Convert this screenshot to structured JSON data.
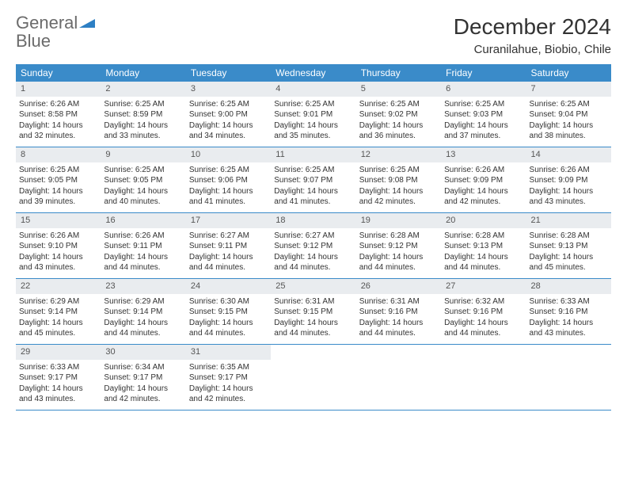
{
  "brand": {
    "word1": "General",
    "word2": "Blue"
  },
  "title": "December 2024",
  "location": "Curanilahue, Biobio, Chile",
  "colors": {
    "header_bg": "#3a8bc9",
    "header_text": "#ffffff",
    "daynum_bg": "#e9ecef",
    "border": "#3a8bc9",
    "brand_gray": "#6b6b6b",
    "brand_blue": "#2d7fc4"
  },
  "font": {
    "title_size": 28,
    "location_size": 15,
    "weekday_size": 12,
    "body_size": 10
  },
  "weekdays": [
    "Sunday",
    "Monday",
    "Tuesday",
    "Wednesday",
    "Thursday",
    "Friday",
    "Saturday"
  ],
  "weeks": [
    [
      {
        "n": "1",
        "sr": "Sunrise: 6:26 AM",
        "ss": "Sunset: 8:58 PM",
        "dl": "Daylight: 14 hours and 32 minutes."
      },
      {
        "n": "2",
        "sr": "Sunrise: 6:25 AM",
        "ss": "Sunset: 8:59 PM",
        "dl": "Daylight: 14 hours and 33 minutes."
      },
      {
        "n": "3",
        "sr": "Sunrise: 6:25 AM",
        "ss": "Sunset: 9:00 PM",
        "dl": "Daylight: 14 hours and 34 minutes."
      },
      {
        "n": "4",
        "sr": "Sunrise: 6:25 AM",
        "ss": "Sunset: 9:01 PM",
        "dl": "Daylight: 14 hours and 35 minutes."
      },
      {
        "n": "5",
        "sr": "Sunrise: 6:25 AM",
        "ss": "Sunset: 9:02 PM",
        "dl": "Daylight: 14 hours and 36 minutes."
      },
      {
        "n": "6",
        "sr": "Sunrise: 6:25 AM",
        "ss": "Sunset: 9:03 PM",
        "dl": "Daylight: 14 hours and 37 minutes."
      },
      {
        "n": "7",
        "sr": "Sunrise: 6:25 AM",
        "ss": "Sunset: 9:04 PM",
        "dl": "Daylight: 14 hours and 38 minutes."
      }
    ],
    [
      {
        "n": "8",
        "sr": "Sunrise: 6:25 AM",
        "ss": "Sunset: 9:05 PM",
        "dl": "Daylight: 14 hours and 39 minutes."
      },
      {
        "n": "9",
        "sr": "Sunrise: 6:25 AM",
        "ss": "Sunset: 9:05 PM",
        "dl": "Daylight: 14 hours and 40 minutes."
      },
      {
        "n": "10",
        "sr": "Sunrise: 6:25 AM",
        "ss": "Sunset: 9:06 PM",
        "dl": "Daylight: 14 hours and 41 minutes."
      },
      {
        "n": "11",
        "sr": "Sunrise: 6:25 AM",
        "ss": "Sunset: 9:07 PM",
        "dl": "Daylight: 14 hours and 41 minutes."
      },
      {
        "n": "12",
        "sr": "Sunrise: 6:25 AM",
        "ss": "Sunset: 9:08 PM",
        "dl": "Daylight: 14 hours and 42 minutes."
      },
      {
        "n": "13",
        "sr": "Sunrise: 6:26 AM",
        "ss": "Sunset: 9:09 PM",
        "dl": "Daylight: 14 hours and 42 minutes."
      },
      {
        "n": "14",
        "sr": "Sunrise: 6:26 AM",
        "ss": "Sunset: 9:09 PM",
        "dl": "Daylight: 14 hours and 43 minutes."
      }
    ],
    [
      {
        "n": "15",
        "sr": "Sunrise: 6:26 AM",
        "ss": "Sunset: 9:10 PM",
        "dl": "Daylight: 14 hours and 43 minutes."
      },
      {
        "n": "16",
        "sr": "Sunrise: 6:26 AM",
        "ss": "Sunset: 9:11 PM",
        "dl": "Daylight: 14 hours and 44 minutes."
      },
      {
        "n": "17",
        "sr": "Sunrise: 6:27 AM",
        "ss": "Sunset: 9:11 PM",
        "dl": "Daylight: 14 hours and 44 minutes."
      },
      {
        "n": "18",
        "sr": "Sunrise: 6:27 AM",
        "ss": "Sunset: 9:12 PM",
        "dl": "Daylight: 14 hours and 44 minutes."
      },
      {
        "n": "19",
        "sr": "Sunrise: 6:28 AM",
        "ss": "Sunset: 9:12 PM",
        "dl": "Daylight: 14 hours and 44 minutes."
      },
      {
        "n": "20",
        "sr": "Sunrise: 6:28 AM",
        "ss": "Sunset: 9:13 PM",
        "dl": "Daylight: 14 hours and 44 minutes."
      },
      {
        "n": "21",
        "sr": "Sunrise: 6:28 AM",
        "ss": "Sunset: 9:13 PM",
        "dl": "Daylight: 14 hours and 45 minutes."
      }
    ],
    [
      {
        "n": "22",
        "sr": "Sunrise: 6:29 AM",
        "ss": "Sunset: 9:14 PM",
        "dl": "Daylight: 14 hours and 45 minutes."
      },
      {
        "n": "23",
        "sr": "Sunrise: 6:29 AM",
        "ss": "Sunset: 9:14 PM",
        "dl": "Daylight: 14 hours and 44 minutes."
      },
      {
        "n": "24",
        "sr": "Sunrise: 6:30 AM",
        "ss": "Sunset: 9:15 PM",
        "dl": "Daylight: 14 hours and 44 minutes."
      },
      {
        "n": "25",
        "sr": "Sunrise: 6:31 AM",
        "ss": "Sunset: 9:15 PM",
        "dl": "Daylight: 14 hours and 44 minutes."
      },
      {
        "n": "26",
        "sr": "Sunrise: 6:31 AM",
        "ss": "Sunset: 9:16 PM",
        "dl": "Daylight: 14 hours and 44 minutes."
      },
      {
        "n": "27",
        "sr": "Sunrise: 6:32 AM",
        "ss": "Sunset: 9:16 PM",
        "dl": "Daylight: 14 hours and 44 minutes."
      },
      {
        "n": "28",
        "sr": "Sunrise: 6:33 AM",
        "ss": "Sunset: 9:16 PM",
        "dl": "Daylight: 14 hours and 43 minutes."
      }
    ],
    [
      {
        "n": "29",
        "sr": "Sunrise: 6:33 AM",
        "ss": "Sunset: 9:17 PM",
        "dl": "Daylight: 14 hours and 43 minutes."
      },
      {
        "n": "30",
        "sr": "Sunrise: 6:34 AM",
        "ss": "Sunset: 9:17 PM",
        "dl": "Daylight: 14 hours and 42 minutes."
      },
      {
        "n": "31",
        "sr": "Sunrise: 6:35 AM",
        "ss": "Sunset: 9:17 PM",
        "dl": "Daylight: 14 hours and 42 minutes."
      },
      {
        "empty": true
      },
      {
        "empty": true
      },
      {
        "empty": true
      },
      {
        "empty": true
      }
    ]
  ]
}
